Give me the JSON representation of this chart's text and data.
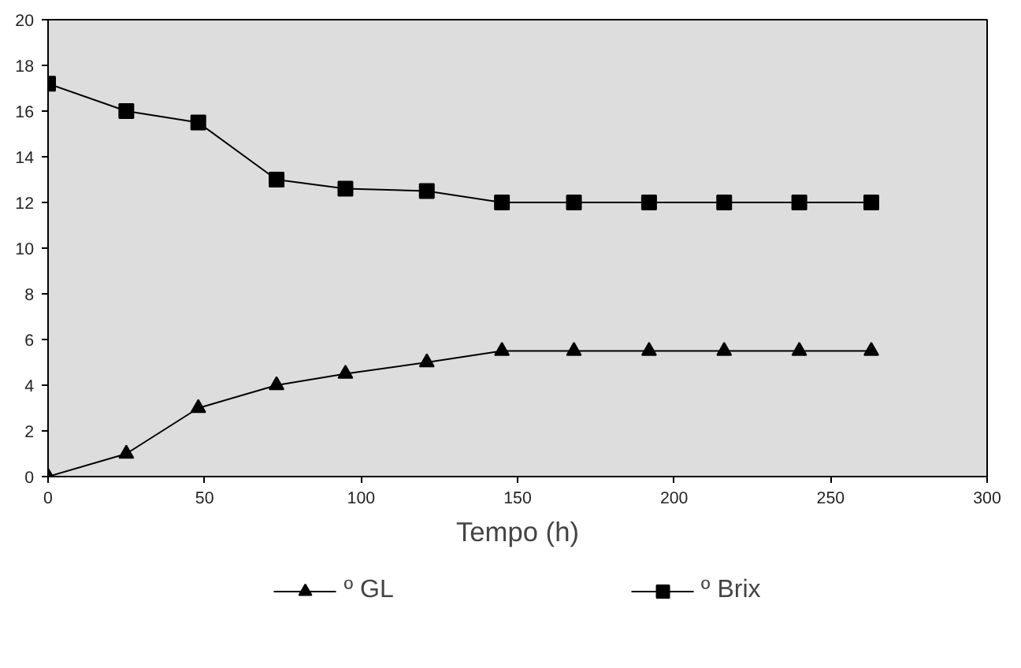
{
  "chart_data": {
    "type": "line",
    "xlabel": "Tempo (h)",
    "x": [
      0,
      25,
      48,
      73,
      95,
      121,
      145,
      168,
      192,
      216,
      240,
      263
    ],
    "series": [
      {
        "name": "º GL",
        "color": "#000000",
        "marker": "triangle",
        "values": [
          0,
          1,
          3,
          4,
          4.5,
          5,
          5.5,
          5.5,
          5.5,
          5.5,
          5.5,
          5.5
        ]
      },
      {
        "name": "º Brix",
        "color": "#000000",
        "marker": "square",
        "values": [
          17.2,
          16,
          15.5,
          13,
          12.6,
          12.5,
          12,
          12,
          12,
          12,
          12,
          12
        ]
      }
    ],
    "xlim": [
      0,
      300
    ],
    "xticks": [
      0,
      50,
      100,
      150,
      200,
      250,
      300
    ],
    "ylim": [
      0,
      20
    ],
    "yticks": [
      0,
      2,
      4,
      6,
      8,
      10,
      12,
      14,
      16,
      18,
      20
    ],
    "grid": false,
    "legend": "bottom",
    "line_style": "solid"
  }
}
